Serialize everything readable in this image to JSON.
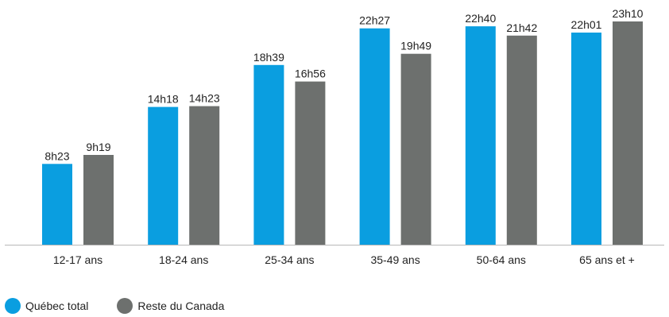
{
  "chart_data": {
    "type": "bar",
    "title": "",
    "xlabel": "",
    "ylabel": "",
    "categories": [
      "12-17 ans",
      "18-24 ans",
      "25-34 ans",
      "35-49 ans",
      "50-64 ans",
      "65 ans et +"
    ],
    "series": [
      {
        "name": "Québec total",
        "color": "#0a9ee0",
        "labels": [
          "8h23",
          "14h18",
          "18h39",
          "22h27",
          "22h40",
          "22h01"
        ],
        "values": [
          8.383,
          14.3,
          18.65,
          22.45,
          22.667,
          22.017
        ]
      },
      {
        "name": "Reste du Canada",
        "color": "#6d706e",
        "labels": [
          "9h19",
          "14h23",
          "16h56",
          "19h49",
          "21h42",
          "23h10"
        ],
        "values": [
          9.317,
          14.383,
          16.933,
          19.817,
          21.7,
          23.167
        ]
      }
    ],
    "ylim": [
      0,
      23.17
    ],
    "grid": false,
    "legend": "bottom-left"
  },
  "colors": {
    "axis": "#b8b8b8",
    "text": "#222222"
  }
}
